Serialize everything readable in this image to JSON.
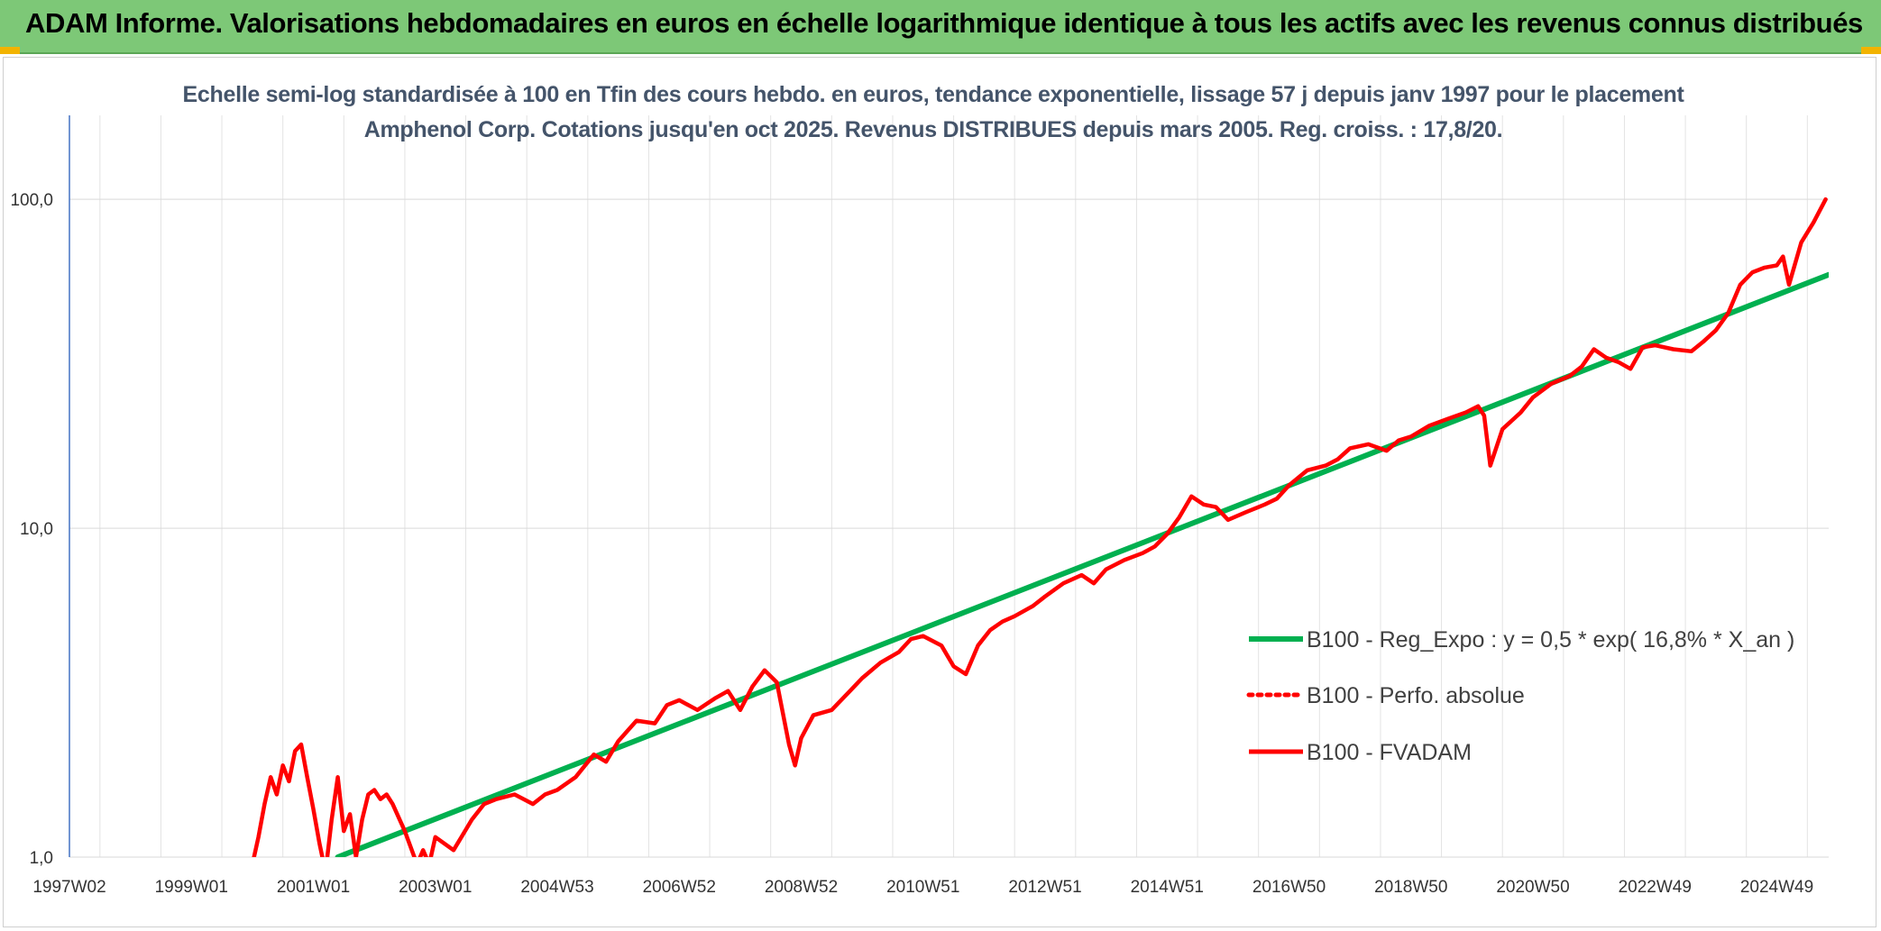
{
  "banner": {
    "title": "ADAM Informe. Valorisations hebdomadaires en euros en échelle logarithmique identique à tous les actifs avec les revenus connus distribués"
  },
  "chart_data": {
    "type": "line",
    "title": "Echelle semi-log standardisée à 100 en Tfin des cours hebdo. en euros, tendance exponentielle, lissage 57 j depuis janv 1997 pour le placement Amphenol Corp. Cotations jusqu'en oct 2025. Revenus DISTRIBUES depuis mars 2005. Reg. croiss. : 17,8/20.",
    "xlabel": "",
    "ylabel": "",
    "y_scale": "log",
    "ylim": [
      1,
      180
    ],
    "y_ticks": [
      "1,0",
      "10,0",
      "100,0"
    ],
    "x_range": [
      1997.0,
      2025.85
    ],
    "x_ticks": [
      {
        "label": "1997W02",
        "x": 1997.0
      },
      {
        "label": "1999W01",
        "x": 1999.0
      },
      {
        "label": "2001W01",
        "x": 2001.0
      },
      {
        "label": "2003W01",
        "x": 2003.0
      },
      {
        "label": "2004W53",
        "x": 2005.0
      },
      {
        "label": "2006W52",
        "x": 2007.0
      },
      {
        "label": "2008W52",
        "x": 2009.0
      },
      {
        "label": "2010W51",
        "x": 2011.0
      },
      {
        "label": "2012W51",
        "x": 2013.0
      },
      {
        "label": "2014W51",
        "x": 2015.0
      },
      {
        "label": "2016W50",
        "x": 2017.0
      },
      {
        "label": "2018W50",
        "x": 2019.0
      },
      {
        "label": "2020W50",
        "x": 2021.0
      },
      {
        "label": "2022W49",
        "x": 2023.0
      },
      {
        "label": "2024W49",
        "x": 2025.0
      }
    ],
    "grid": true,
    "legend_position": "right",
    "series": [
      {
        "name": "B100 - Reg_Expo : y = 0,5 * exp( 16,8% *  X_an )",
        "color": "#00b050",
        "style": "solid",
        "x": [
          2001.4,
          2025.85
        ],
        "y": [
          1.0,
          59.0
        ]
      },
      {
        "name": "B100 - Perfo. absolue",
        "color": "#ff0000",
        "style": "dotted",
        "x": [],
        "y": []
      },
      {
        "name": "B100 - FVADAM",
        "color": "#ff0000",
        "style": "solid",
        "x": [
          2000.0,
          2000.1,
          2000.2,
          2000.3,
          2000.4,
          2000.5,
          2000.6,
          2000.7,
          2000.8,
          2000.9,
          2001.0,
          2001.1,
          2001.2,
          2001.3,
          2001.4,
          2001.5,
          2001.6,
          2001.7,
          2001.8,
          2001.9,
          2002.0,
          2002.1,
          2002.2,
          2002.3,
          2002.5,
          2002.7,
          2002.8,
          2002.9,
          2003.0,
          2003.3,
          2003.6,
          2003.8,
          2004.0,
          2004.3,
          2004.6,
          2004.8,
          2005.0,
          2005.3,
          2005.6,
          2005.8,
          2006.0,
          2006.3,
          2006.6,
          2006.8,
          2007.0,
          2007.3,
          2007.6,
          2007.8,
          2008.0,
          2008.2,
          2008.4,
          2008.6,
          2008.8,
          2008.9,
          2009.0,
          2009.2,
          2009.5,
          2009.8,
          2010.0,
          2010.3,
          2010.6,
          2010.8,
          2011.0,
          2011.3,
          2011.5,
          2011.7,
          2011.9,
          2012.1,
          2012.3,
          2012.5,
          2012.8,
          2013.0,
          2013.3,
          2013.6,
          2013.8,
          2014.0,
          2014.3,
          2014.6,
          2014.8,
          2015.0,
          2015.2,
          2015.4,
          2015.6,
          2015.8,
          2016.0,
          2016.3,
          2016.6,
          2016.8,
          2017.0,
          2017.3,
          2017.6,
          2017.8,
          2018.0,
          2018.3,
          2018.6,
          2018.8,
          2019.0,
          2019.3,
          2019.6,
          2019.9,
          2020.1,
          2020.2,
          2020.3,
          2020.5,
          2020.8,
          2021.0,
          2021.3,
          2021.6,
          2021.8,
          2022.0,
          2022.2,
          2022.4,
          2022.6,
          2022.8,
          2023.0,
          2023.3,
          2023.6,
          2023.8,
          2024.0,
          2024.2,
          2024.4,
          2024.6,
          2024.8,
          2025.0,
          2025.1,
          2025.2,
          2025.4,
          2025.6,
          2025.8
        ],
        "y": [
          0.95,
          1.15,
          1.45,
          1.75,
          1.55,
          1.9,
          1.7,
          2.1,
          2.2,
          1.75,
          1.4,
          1.1,
          0.9,
          1.3,
          1.75,
          1.2,
          1.35,
          1.0,
          1.3,
          1.55,
          1.6,
          1.5,
          1.55,
          1.45,
          1.2,
          0.95,
          1.05,
          0.95,
          1.15,
          1.05,
          1.3,
          1.45,
          1.5,
          1.55,
          1.45,
          1.55,
          1.6,
          1.75,
          2.05,
          1.95,
          2.25,
          2.6,
          2.55,
          2.9,
          3.0,
          2.8,
          3.05,
          3.2,
          2.8,
          3.3,
          3.7,
          3.4,
          2.2,
          1.9,
          2.3,
          2.7,
          2.8,
          3.2,
          3.5,
          3.9,
          4.2,
          4.6,
          4.7,
          4.4,
          3.8,
          3.6,
          4.4,
          4.9,
          5.2,
          5.4,
          5.8,
          6.2,
          6.8,
          7.2,
          6.8,
          7.5,
          8.0,
          8.4,
          8.8,
          9.6,
          10.8,
          12.5,
          11.8,
          11.6,
          10.6,
          11.2,
          11.8,
          12.3,
          13.5,
          15.0,
          15.5,
          16.2,
          17.5,
          18.0,
          17.2,
          18.5,
          19.0,
          20.5,
          21.5,
          22.5,
          23.5,
          22.0,
          15.5,
          20.0,
          22.5,
          25.0,
          27.5,
          29.0,
          31.0,
          35.0,
          33.0,
          32.0,
          30.5,
          35.5,
          36.0,
          35.0,
          34.5,
          37.0,
          40.0,
          45.0,
          55.0,
          60.0,
          62.0,
          63.0,
          67.0,
          55.0,
          74.0,
          85.0,
          100.0
        ]
      }
    ]
  }
}
